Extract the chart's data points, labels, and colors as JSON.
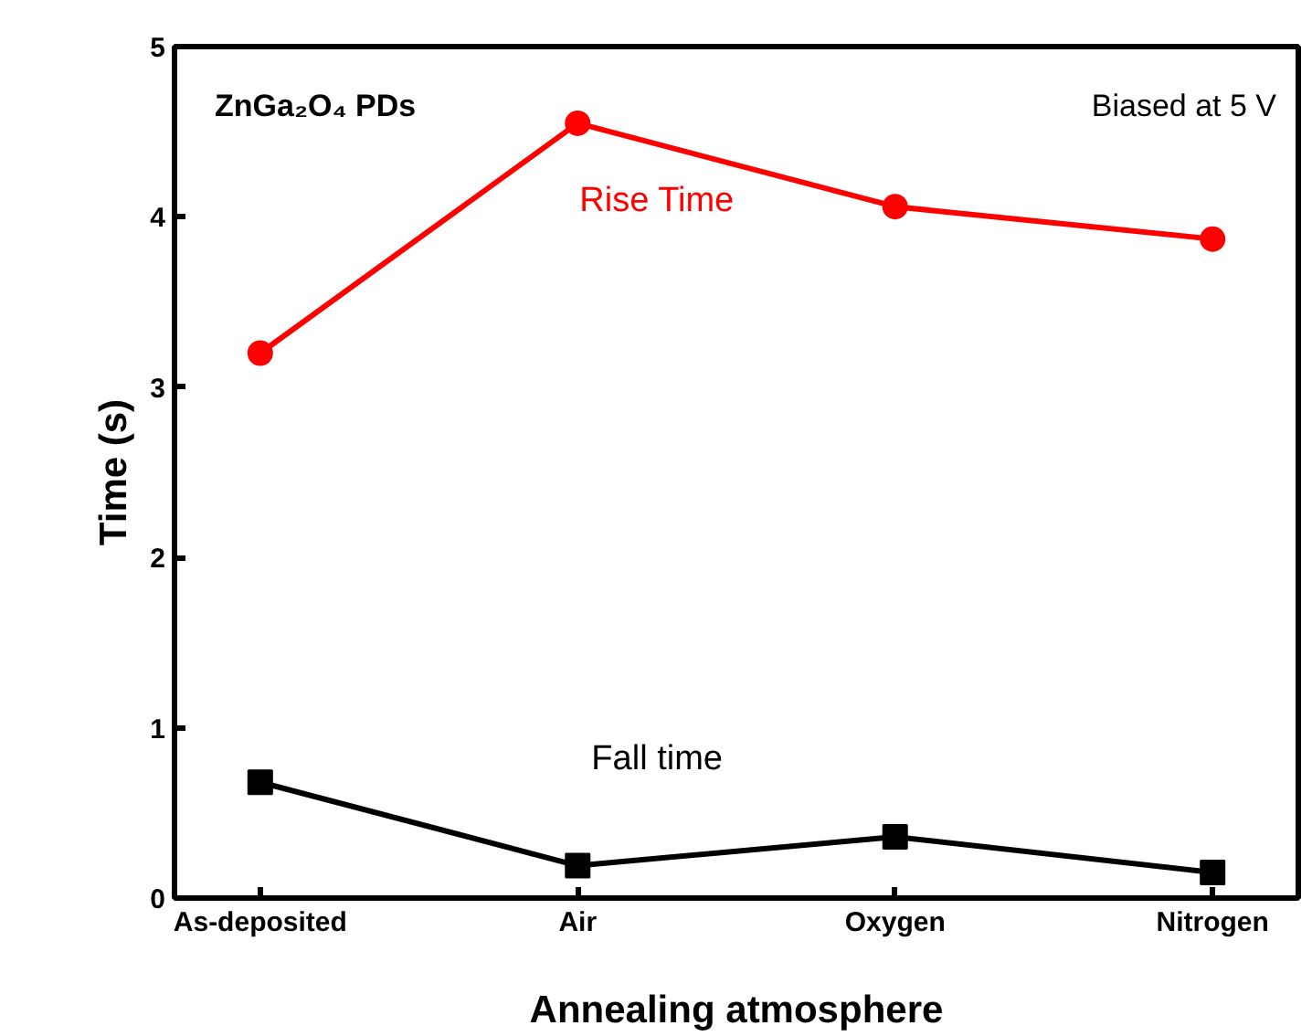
{
  "chart_data": {
    "type": "line",
    "xlabel": "Annealing atmosphere",
    "ylabel": "Time (s)",
    "categories": [
      "As-deposited",
      "Air",
      "Oxygen",
      "Nitrogen"
    ],
    "series": [
      {
        "name": "Rise Time",
        "color": "#ff0000",
        "marker": "circle",
        "values": [
          3.2,
          4.55,
          4.06,
          3.87
        ]
      },
      {
        "name": "Fall time",
        "color": "#000000",
        "marker": "square",
        "values": [
          0.68,
          0.19,
          0.36,
          0.15
        ]
      }
    ],
    "ylim": [
      0,
      5
    ],
    "yticks": [
      0,
      1,
      2,
      3,
      4,
      5
    ],
    "grid": false,
    "annotations": [
      "ZnGa₂O₄ PDs",
      "Biased at 5 V"
    ]
  }
}
